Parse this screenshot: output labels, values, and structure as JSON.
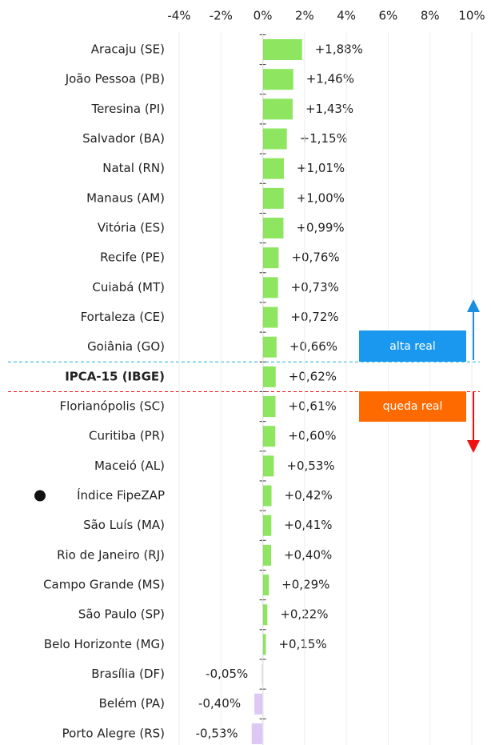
{
  "chart_data": {
    "type": "bar",
    "orientation": "horizontal",
    "categories": [
      "Aracaju (SE)",
      "João Pessoa (PB)",
      "Teresina (PI)",
      "Salvador (BA)",
      "Natal (RN)",
      "Manaus (AM)",
      "Vitória (ES)",
      "Recife (PE)",
      "Cuiabá (MT)",
      "Fortaleza (CE)",
      "Goiânia (GO)",
      "IPCA-15 (IBGE)",
      "Florianópolis (SC)",
      "Curitiba (PR)",
      "Maceió (AL)",
      "Índice FipeZAP",
      "São Luís (MA)",
      "Rio de Janeiro (RJ)",
      "Campo Grande (MS)",
      "São Paulo (SP)",
      "Belo Horizonte (MG)",
      "Brasília (DF)",
      "Belém (PA)",
      "Porto Alegre (RS)"
    ],
    "values": [
      1.88,
      1.46,
      1.43,
      1.15,
      1.01,
      1.0,
      0.99,
      0.76,
      0.73,
      0.72,
      0.66,
      0.62,
      0.61,
      0.6,
      0.53,
      0.42,
      0.41,
      0.4,
      0.29,
      0.22,
      0.15,
      -0.05,
      -0.4,
      -0.53
    ],
    "value_labels": [
      "+1,88%",
      "+1,46%",
      "+1,43%",
      "+1,15%",
      "+1,01%",
      "+1,00%",
      "+0,99%",
      "+0,76%",
      "+0,73%",
      "+0,72%",
      "+0,66%",
      "+0,62%",
      "+0,61%",
      "+0,60%",
      "+0,53%",
      "+0,42%",
      "+0,41%",
      "+0,40%",
      "+0,29%",
      "+0,22%",
      "+0,15%",
      "-0,05%",
      "-0,40%",
      "-0,53%"
    ],
    "positive_color": "#8ee660",
    "negative_color": "#dcc8f5",
    "xlim": [
      -4,
      10
    ],
    "xticks": [
      {
        "value": -4,
        "label": "-4%"
      },
      {
        "value": -2,
        "label": "-2%"
      },
      {
        "value": 0,
        "label": "0%"
      },
      {
        "value": 2,
        "label": "2%"
      },
      {
        "value": 4,
        "label": "4%"
      },
      {
        "value": 6,
        "label": "6%"
      },
      {
        "value": 8,
        "label": "8%"
      },
      {
        "value": 10,
        "label": "10%"
      }
    ],
    "grid": true,
    "annotations": [
      "alta real",
      "queda real"
    ]
  }
}
